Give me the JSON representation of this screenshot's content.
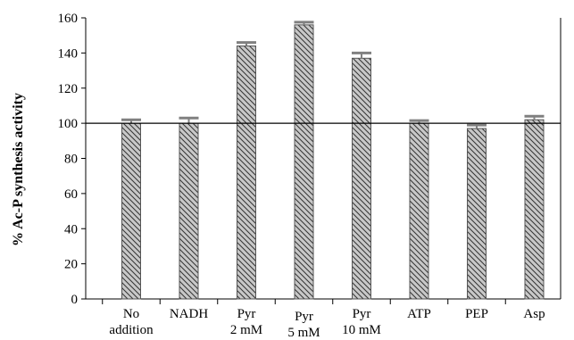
{
  "chart_data": {
    "type": "bar",
    "categories": [
      [
        "No",
        "addition"
      ],
      [
        "NADH"
      ],
      [
        "Pyr",
        "2 mM"
      ],
      [
        "Pyr",
        "5 mM"
      ],
      [
        "Pyr",
        "10 mM"
      ],
      [
        "ATP"
      ],
      [
        "PEP"
      ],
      [
        "Asp"
      ]
    ],
    "values": [
      100,
      100,
      144,
      156,
      137,
      100,
      97,
      102
    ],
    "errors": [
      2,
      3,
      2,
      1.5,
      3,
      1.5,
      2,
      2
    ],
    "title": "",
    "xlabel": "",
    "ylabel": "% Ac-P synthesis activity",
    "ylim": [
      0,
      160
    ],
    "yticks": [
      0,
      20,
      40,
      60,
      80,
      100,
      120,
      140,
      160
    ],
    "reference_line": 100,
    "bar_color": "#c8c8c8",
    "bar_hatch": "diagonal",
    "error_bar_color": "#808080",
    "grid": false,
    "legend": "none"
  }
}
